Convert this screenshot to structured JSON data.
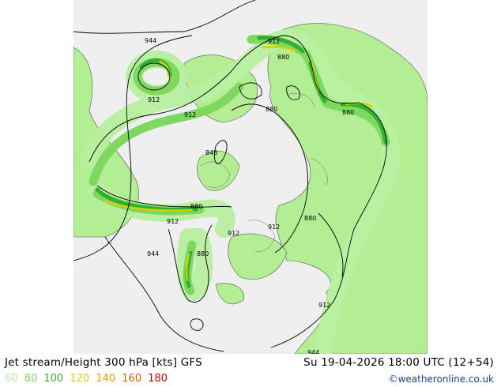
{
  "header": {
    "title": "Jet stream/Height 300 hPa [kts] GFS",
    "datetime": "Su 19-04-2026 18:00 UTC (12+54)"
  },
  "legend": {
    "items": [
      {
        "label": "60",
        "color": "#b8f0a0"
      },
      {
        "label": "80",
        "color": "#7ed860"
      },
      {
        "label": "100",
        "color": "#30b030"
      },
      {
        "label": "120",
        "color": "#d8d000"
      },
      {
        "label": "140",
        "color": "#e0a000"
      },
      {
        "label": "160",
        "color": "#e06000"
      },
      {
        "label": "180",
        "color": "#c00000"
      }
    ]
  },
  "credit": "©weatheronline.co.uk",
  "map": {
    "contour_labels": [
      "944",
      "912",
      "912",
      "880",
      "880",
      "880",
      "912",
      "848",
      "880",
      "912",
      "944",
      "880",
      "912",
      "912",
      "880",
      "912",
      "944"
    ]
  }
}
